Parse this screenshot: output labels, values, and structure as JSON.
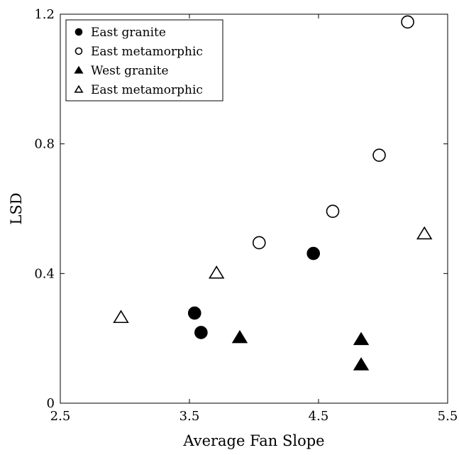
{
  "chart_data": {
    "type": "scatter",
    "title": "",
    "xlabel": "Average Fan Slope",
    "ylabel": "LSD",
    "xlim": [
      2.5,
      5.5
    ],
    "ylim": [
      0,
      1.2
    ],
    "xticks": [
      2.5,
      3.5,
      4.5,
      5.5
    ],
    "xtick_labels": [
      "2.5",
      "3.5",
      "4.5",
      "5.5"
    ],
    "yticks": [
      0,
      0.4,
      0.8,
      1.2
    ],
    "ytick_labels": [
      "0",
      "0.4",
      "0.8",
      "1.2"
    ],
    "grid": false,
    "legend_position": "top-left",
    "series": [
      {
        "name": "East granite",
        "marker": "circle",
        "filled": true,
        "x": [
          3.54,
          3.59,
          4.46
        ],
        "y": [
          0.278,
          0.218,
          0.462
        ]
      },
      {
        "name": "East metamorphic",
        "marker": "circle",
        "filled": false,
        "x": [
          4.04,
          4.61,
          4.97,
          5.19
        ],
        "y": [
          0.495,
          0.592,
          0.765,
          1.176
        ]
      },
      {
        "name": "West granite",
        "marker": "triangle",
        "filled": true,
        "x": [
          3.89,
          4.83,
          4.83
        ],
        "y": [
          0.203,
          0.197,
          0.119
        ]
      },
      {
        "name": "East metamorphic",
        "marker": "triangle",
        "filled": false,
        "x": [
          2.97,
          3.71,
          5.32
        ],
        "y": [
          0.265,
          0.402,
          0.523
        ]
      }
    ]
  }
}
